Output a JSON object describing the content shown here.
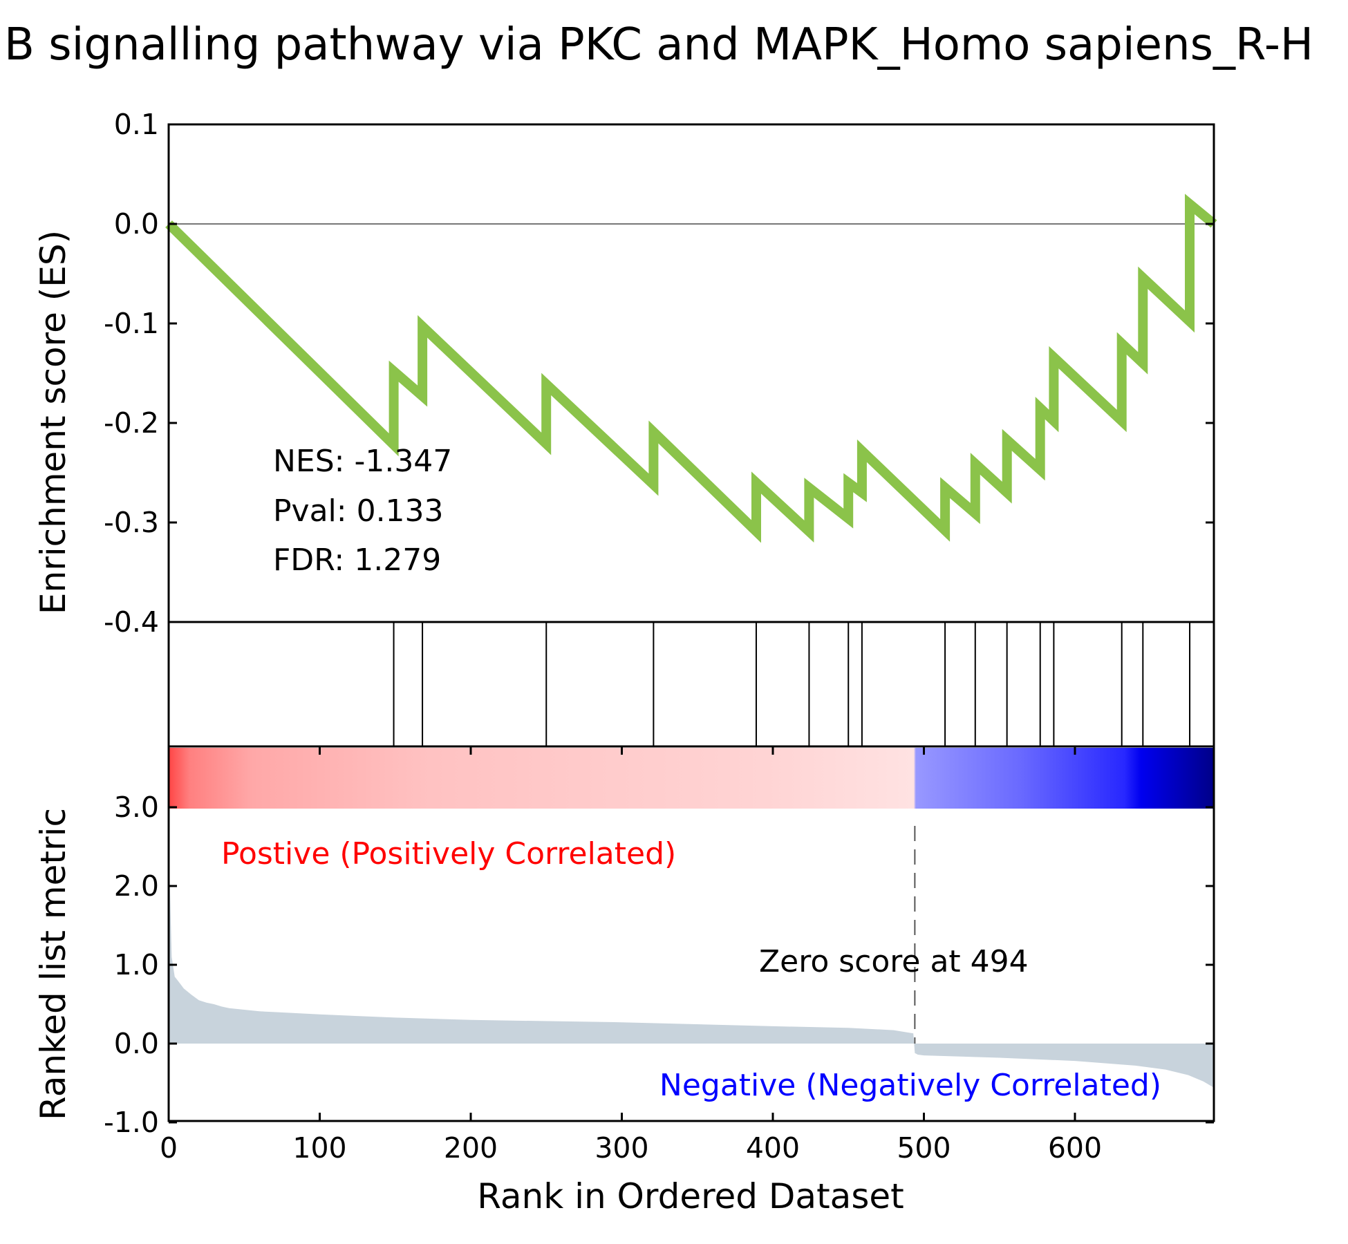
{
  "chart_data": {
    "type": "line",
    "title": "B signalling pathway via PKC and MAPK_Homo sapiens_R-H",
    "xlabel": "Rank in Ordered Dataset",
    "xlim": [
      0,
      692
    ],
    "x_ticks": [
      "0",
      "100",
      "200",
      "300",
      "400",
      "500",
      "600"
    ],
    "x_tick_values": [
      0,
      100,
      200,
      300,
      400,
      500,
      600
    ],
    "es_panel": {
      "ylabel": "Enrichment score (ES)",
      "ylim": [
        -0.4,
        0.1
      ],
      "y_ticks": [
        "0.1",
        "0.0",
        "-0.1",
        "-0.2",
        "-0.3",
        "-0.4"
      ],
      "y_tick_values": [
        0.1,
        0.0,
        -0.1,
        -0.2,
        -0.3,
        -0.4
      ],
      "line_color": "#8bc34a",
      "es_curve": {
        "x": [
          0,
          149,
          149,
          168,
          168,
          250,
          250,
          321,
          321,
          389,
          389,
          424,
          424,
          450,
          450,
          459,
          459,
          514,
          514,
          534,
          534,
          555,
          555,
          577,
          577,
          586,
          586,
          631,
          631,
          645,
          645,
          676,
          676,
          692
        ],
        "y": [
          0.0,
          -0.222,
          -0.148,
          -0.173,
          -0.103,
          -0.221,
          -0.161,
          -0.262,
          -0.209,
          -0.309,
          -0.26,
          -0.309,
          -0.265,
          -0.296,
          -0.26,
          -0.27,
          -0.228,
          -0.308,
          -0.265,
          -0.291,
          -0.241,
          -0.27,
          -0.217,
          -0.247,
          -0.185,
          -0.198,
          -0.134,
          -0.198,
          -0.12,
          -0.14,
          -0.054,
          -0.098,
          0.02,
          0.0
        ]
      },
      "stats": {
        "nes": "NES: -1.347",
        "pval": "Pval: 0.133",
        "fdr": "FDR: 1.279"
      }
    },
    "hit_positions": [
      149,
      168,
      250,
      321,
      389,
      424,
      450,
      459,
      514,
      534,
      555,
      577,
      586,
      631,
      645,
      676
    ],
    "ranked_panel": {
      "ylabel": "Ranked list metric",
      "ylim": [
        -1.0,
        3.6
      ],
      "y_ticks": [
        "3.0",
        "2.0",
        "1.0",
        "0.0",
        "-1.0"
      ],
      "y_tick_values": [
        3.0,
        2.0,
        1.0,
        0.0,
        -1.0
      ],
      "fill_color": "#c8d3dc",
      "metric": {
        "x": [
          0,
          2,
          4,
          6,
          8,
          10,
          15,
          20,
          25,
          30,
          35,
          40,
          50,
          60,
          70,
          80,
          100,
          150,
          200,
          300,
          400,
          450,
          480,
          493,
          494,
          496,
          500,
          550,
          600,
          640,
          660,
          675,
          685,
          692
        ],
        "y": [
          2.6,
          1.1,
          0.85,
          0.8,
          0.75,
          0.7,
          0.62,
          0.55,
          0.52,
          0.5,
          0.47,
          0.45,
          0.43,
          0.41,
          0.4,
          0.39,
          0.37,
          0.33,
          0.3,
          0.27,
          0.22,
          0.2,
          0.17,
          0.13,
          -0.12,
          -0.14,
          -0.15,
          -0.18,
          -0.22,
          -0.28,
          -0.33,
          -0.4,
          -0.48,
          -0.56
        ]
      },
      "zero_cross": 494,
      "zero_label": "Zero score at 494",
      "positive_label": "Postive (Positively Correlated)",
      "negative_label": "Negative (Negatively Correlated)",
      "positive_color": "#ff0000",
      "negative_color": "#0000ff"
    }
  }
}
